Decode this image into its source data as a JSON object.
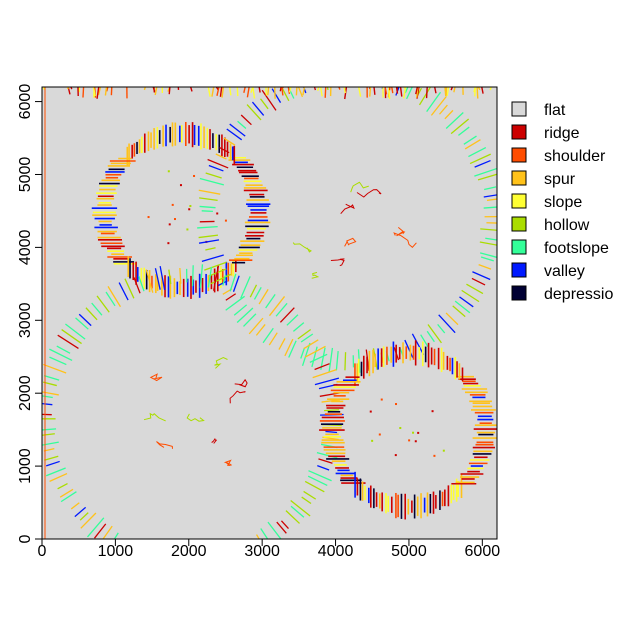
{
  "chart_data": {
    "type": "heatmap",
    "title": "",
    "xlabel": "",
    "ylabel": "",
    "xlim": [
      0,
      6200
    ],
    "ylim": [
      0,
      6200
    ],
    "xticks": [
      0,
      1000,
      2000,
      3000,
      4000,
      5000,
      6000
    ],
    "yticks": [
      0,
      1000,
      2000,
      3000,
      4000,
      5000,
      6000
    ],
    "background_class": "flat",
    "features": [
      {
        "kind": "crater",
        "cx": 1900,
        "cy": 4500,
        "r": 1050
      },
      {
        "kind": "ring",
        "cx": 4200,
        "cy": 4400,
        "r": 1950
      },
      {
        "kind": "ring",
        "cx": 2000,
        "cy": 1650,
        "r": 1950
      },
      {
        "kind": "crater",
        "cx": 5000,
        "cy": 1500,
        "r": 1050
      }
    ],
    "legend": [
      {
        "label": "flat",
        "color": "#d9d9d9"
      },
      {
        "label": "ridge",
        "color": "#cc0000"
      },
      {
        "label": "shoulder",
        "color": "#ff4d00"
      },
      {
        "label": "spur",
        "color": "#ffc21a"
      },
      {
        "label": "slope",
        "color": "#ffff33"
      },
      {
        "label": "hollow",
        "color": "#aadd00"
      },
      {
        "label": "footslope",
        "color": "#33ff99"
      },
      {
        "label": "valley",
        "color": "#0019ff"
      },
      {
        "label": "depressio",
        "color": "#000033"
      }
    ]
  }
}
